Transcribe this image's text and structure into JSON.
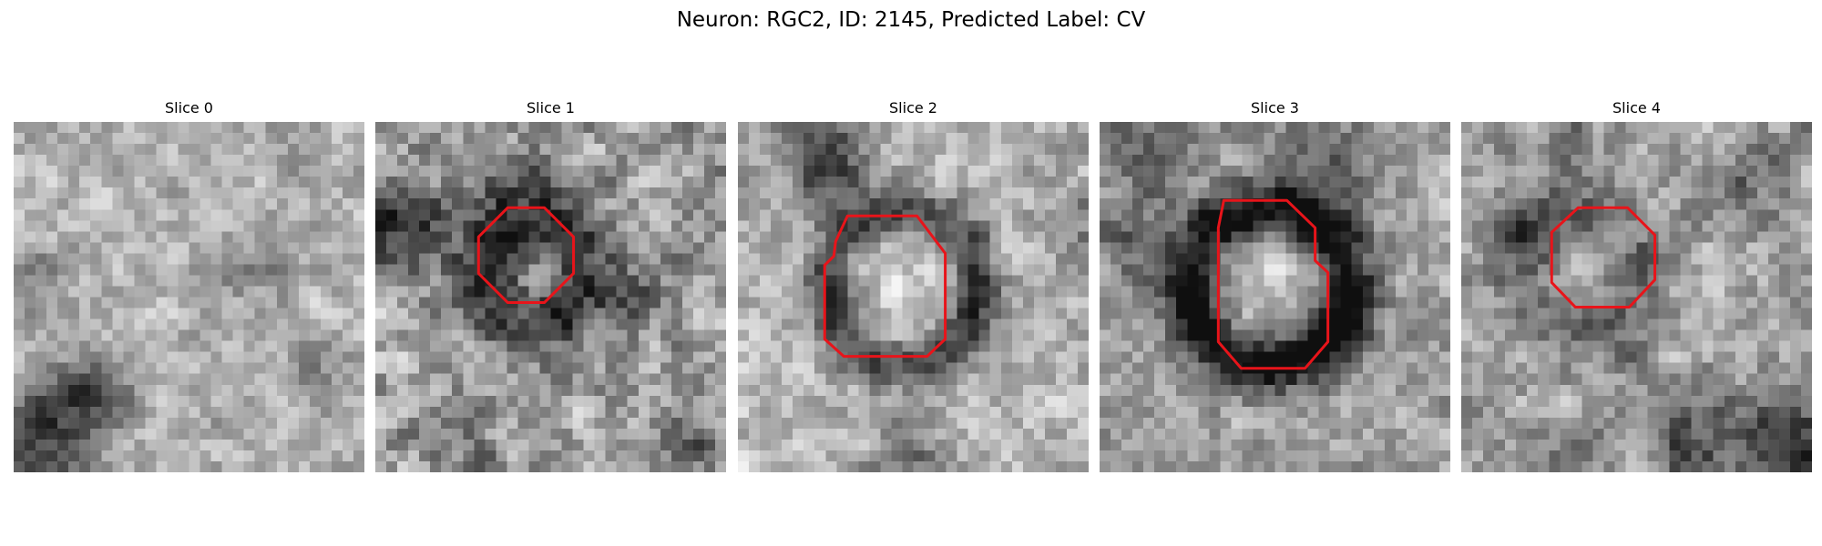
{
  "figure": {
    "title": "Neuron: RGC2, ID: 2145, Predicted Label: CV"
  },
  "slices": [
    {
      "title": "Slice 0",
      "has_contour": false
    },
    {
      "title": "Slice 1",
      "has_contour": true
    },
    {
      "title": "Slice 2",
      "has_contour": true
    },
    {
      "title": "Slice 3",
      "has_contour": true
    },
    {
      "title": "Slice 4",
      "has_contour": true
    }
  ],
  "colors": {
    "contour": "#e8141a",
    "background": "#ffffff",
    "image_colormap": "grayscale"
  }
}
